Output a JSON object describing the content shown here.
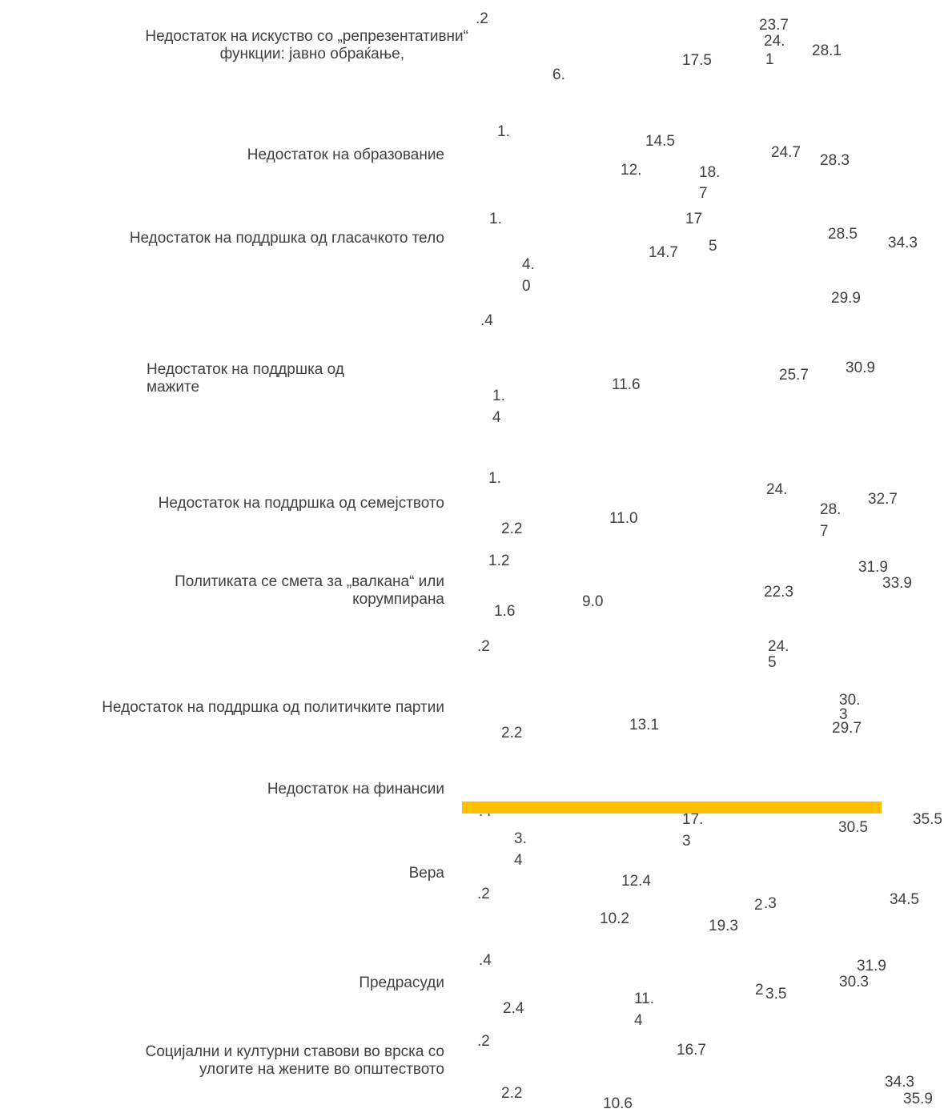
{
  "chart_data": {
    "type": "bar",
    "title": "",
    "xlabel": "",
    "ylabel": "",
    "highlight_color": "#FFC000",
    "text_color": "#404040",
    "categories": [
      {
        "label_lines": [
          "Недостаток на искуство со „репрезентативни“",
          "функции: јавно обраќање,"
        ],
        "values": [
          ".2",
          "6.",
          "17.5",
          "23.7",
          "24.",
          "1",
          "28.1"
        ]
      },
      {
        "label_lines": [
          "Недостаток на образование"
        ],
        "values": [
          "1.",
          "14.5",
          "12.",
          "18.",
          "7",
          "24.7",
          "28.3"
        ]
      },
      {
        "label_lines": [
          "Недостаток на поддршка од гласачкото тело"
        ],
        "values": [
          "1.",
          "4.",
          "0",
          "17",
          "5",
          "14.7",
          "28.5",
          "34.3"
        ]
      },
      {
        "label_lines": [
          "Недостаток на поддршка од",
          "мажите"
        ],
        "values": [
          ".4",
          "29.9",
          "1.",
          "4",
          "11.6",
          "25.7",
          "30.9"
        ]
      },
      {
        "label_lines": [
          "Недостаток на поддршка од семејството"
        ],
        "values": [
          "1.",
          "2.2",
          "11.0",
          "24.",
          "28.",
          "7",
          "32.7"
        ]
      },
      {
        "label_lines": [
          "Политиката се смета за „валкана“ или",
          "корумпирана"
        ],
        "values": [
          "1.2",
          "1.6",
          "9.0",
          "22.3",
          "31.9",
          "33.9"
        ]
      },
      {
        "label_lines": [
          "Недостаток на поддршка од политичките партии"
        ],
        "values": [
          ".2",
          "24.",
          "5",
          "30.",
          "3",
          "2.2",
          "13.1",
          "29.7"
        ]
      },
      {
        "label_lines": [
          "Недостаток на финансии"
        ],
        "values": [
          ".4",
          "17.",
          "3",
          "3.",
          "4",
          "30.5",
          "35.5"
        ]
      },
      {
        "label_lines": [
          "Вера"
        ],
        "values": [
          ".2",
          "12.4",
          "10.2",
          "19.3",
          "2",
          ".3",
          "34.5"
        ]
      },
      {
        "label_lines": [
          "Предрасуди"
        ],
        "values": [
          ".4",
          "2.4",
          "11.",
          "4",
          "2",
          "3.5",
          "30.3",
          "31.9"
        ]
      },
      {
        "label_lines": [
          "Социјални и културни ставови во врска со",
          "улогите на жените во општеството"
        ],
        "values": [
          ".2",
          "2.2",
          "16.7",
          "10.6",
          "34.3",
          "35.9"
        ]
      }
    ]
  }
}
